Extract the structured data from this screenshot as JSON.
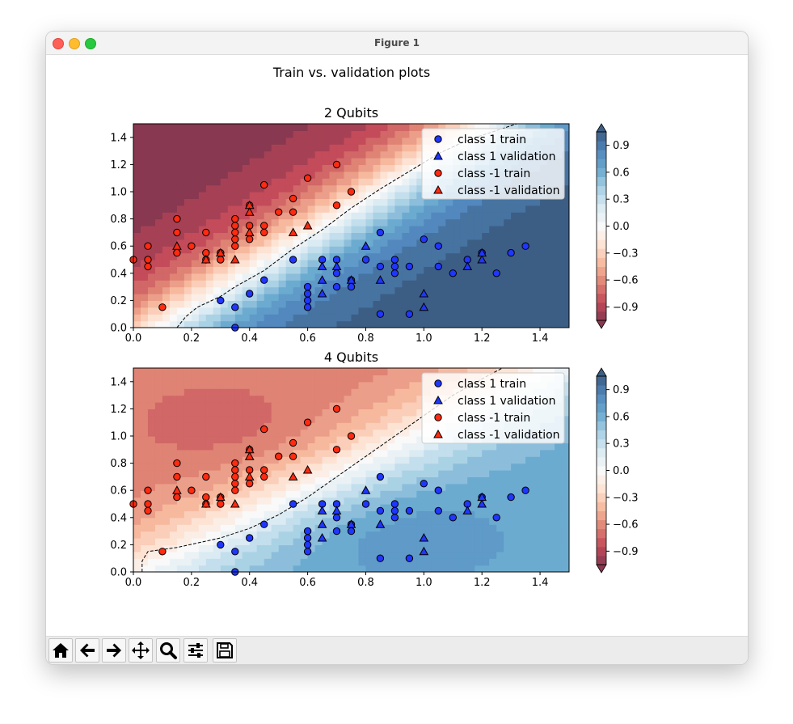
{
  "window": {
    "title": "Figure 1"
  },
  "figure": {
    "suptitle": "Train vs. validation plots"
  },
  "toolbar": {
    "icons": [
      "home-icon",
      "back-arrow-icon",
      "forward-arrow-icon",
      "pan-icon",
      "zoom-icon",
      "configure-subplots-icon",
      "save-icon"
    ]
  },
  "colors": {
    "class1": "#1f36ff",
    "classneg1": "#ff2a10",
    "edge": "#000000"
  },
  "chart_data": [
    {
      "type": "scatter",
      "title": "2 Qubits",
      "xlim": [
        0,
        1.5
      ],
      "ylim": [
        0,
        1.5
      ],
      "xticks": [
        "0.0",
        "0.2",
        "0.4",
        "0.6",
        "0.8",
        "1.0",
        "1.2",
        "1.4"
      ],
      "yticks": [
        "0.0",
        "0.2",
        "0.4",
        "0.6",
        "0.8",
        "1.0",
        "1.2",
        "1.4"
      ],
      "background": "filled decision-function contour, RdBu colormap",
      "colorbar": {
        "ticks": [
          "0.9",
          "0.6",
          "0.3",
          "0.0",
          "−0.3",
          "−0.6",
          "−0.9"
        ],
        "range": [
          -1.05,
          1.05
        ]
      },
      "legend": {
        "placement": "top-right",
        "entries": [
          "class 1 train",
          "class 1 validation",
          "class -1 train",
          "class -1 validation"
        ]
      },
      "decision_boundary": [
        [
          0.15,
          0
        ],
        [
          0.18,
          0.08
        ],
        [
          0.22,
          0.15
        ],
        [
          0.3,
          0.23
        ],
        [
          0.35,
          0.3
        ],
        [
          0.45,
          0.42
        ],
        [
          0.55,
          0.58
        ],
        [
          0.65,
          0.72
        ],
        [
          0.75,
          0.88
        ],
        [
          0.85,
          1.02
        ],
        [
          0.95,
          1.15
        ],
        [
          1.05,
          1.28
        ],
        [
          1.15,
          1.38
        ],
        [
          1.25,
          1.45
        ],
        [
          1.32,
          1.5
        ]
      ]
    },
    {
      "type": "scatter",
      "title": "4 Qubits",
      "xlim": [
        0,
        1.5
      ],
      "ylim": [
        0,
        1.5
      ],
      "xticks": [
        "0.0",
        "0.2",
        "0.4",
        "0.6",
        "0.8",
        "1.0",
        "1.2",
        "1.4"
      ],
      "yticks": [
        "0.0",
        "0.2",
        "0.4",
        "0.6",
        "0.8",
        "1.0",
        "1.2",
        "1.4"
      ],
      "background": "filled decision-function contour, RdBu colormap",
      "colorbar": {
        "ticks": [
          "0.9",
          "0.6",
          "0.3",
          "0.0",
          "−0.3",
          "−0.6",
          "−0.9"
        ],
        "range": [
          -1.05,
          1.05
        ]
      },
      "legend": {
        "placement": "top-right",
        "entries": [
          "class 1 train",
          "class 1 validation",
          "class -1 train",
          "class -1 validation"
        ]
      },
      "decision_boundary": [
        [
          0.03,
          0
        ],
        [
          0.03,
          0.08
        ],
        [
          0.05,
          0.15
        ],
        [
          0.15,
          0.18
        ],
        [
          0.3,
          0.25
        ],
        [
          0.4,
          0.32
        ],
        [
          0.5,
          0.42
        ],
        [
          0.6,
          0.55
        ],
        [
          0.7,
          0.7
        ],
        [
          0.8,
          0.85
        ],
        [
          0.9,
          1.0
        ],
        [
          1.0,
          1.15
        ],
        [
          1.1,
          1.3
        ],
        [
          1.2,
          1.42
        ],
        [
          1.27,
          1.5
        ]
      ]
    }
  ],
  "points": {
    "class1_train": [
      [
        0.3,
        0.2
      ],
      [
        0.35,
        0.15
      ],
      [
        0.35,
        0.0
      ],
      [
        0.4,
        0.25
      ],
      [
        0.45,
        0.35
      ],
      [
        0.55,
        0.5
      ],
      [
        0.6,
        0.3
      ],
      [
        0.6,
        0.25
      ],
      [
        0.6,
        0.2
      ],
      [
        0.6,
        0.15
      ],
      [
        0.65,
        0.5
      ],
      [
        0.7,
        0.5
      ],
      [
        0.7,
        0.4
      ],
      [
        0.7,
        0.3
      ],
      [
        0.75,
        0.35
      ],
      [
        0.75,
        0.3
      ],
      [
        0.8,
        0.5
      ],
      [
        0.85,
        0.7
      ],
      [
        0.85,
        0.45
      ],
      [
        0.85,
        0.1
      ],
      [
        0.9,
        0.5
      ],
      [
        0.9,
        0.45
      ],
      [
        0.9,
        0.4
      ],
      [
        0.95,
        0.45
      ],
      [
        0.95,
        0.1
      ],
      [
        1.0,
        0.65
      ],
      [
        1.05,
        0.6
      ],
      [
        1.05,
        0.45
      ],
      [
        1.1,
        0.4
      ],
      [
        1.15,
        0.5
      ],
      [
        1.2,
        0.55
      ],
      [
        1.25,
        0.4
      ],
      [
        1.3,
        0.55
      ],
      [
        1.35,
        0.6
      ]
    ],
    "class1_val": [
      [
        0.65,
        0.45
      ],
      [
        0.65,
        0.35
      ],
      [
        0.65,
        0.25
      ],
      [
        0.7,
        0.45
      ],
      [
        0.75,
        0.35
      ],
      [
        0.8,
        0.6
      ],
      [
        0.85,
        0.35
      ],
      [
        1.0,
        0.25
      ],
      [
        1.0,
        0.15
      ],
      [
        1.15,
        0.45
      ],
      [
        1.2,
        0.5
      ],
      [
        1.2,
        0.55
      ]
    ],
    "classneg1_train": [
      [
        0.0,
        0.5
      ],
      [
        0.05,
        0.6
      ],
      [
        0.05,
        0.5
      ],
      [
        0.05,
        0.45
      ],
      [
        0.1,
        0.15
      ],
      [
        0.15,
        0.8
      ],
      [
        0.15,
        0.7
      ],
      [
        0.15,
        0.55
      ],
      [
        0.2,
        0.6
      ],
      [
        0.25,
        0.7
      ],
      [
        0.25,
        0.55
      ],
      [
        0.25,
        0.5
      ],
      [
        0.3,
        0.55
      ],
      [
        0.3,
        0.5
      ],
      [
        0.35,
        0.8
      ],
      [
        0.35,
        0.75
      ],
      [
        0.35,
        0.7
      ],
      [
        0.35,
        0.65
      ],
      [
        0.35,
        0.6
      ],
      [
        0.4,
        0.9
      ],
      [
        0.4,
        0.75
      ],
      [
        0.4,
        0.65
      ],
      [
        0.45,
        1.05
      ],
      [
        0.45,
        0.75
      ],
      [
        0.45,
        0.7
      ],
      [
        0.5,
        0.85
      ],
      [
        0.55,
        0.95
      ],
      [
        0.55,
        0.85
      ],
      [
        0.6,
        1.1
      ],
      [
        0.7,
        1.2
      ],
      [
        0.7,
        0.9
      ],
      [
        0.75,
        1.0
      ]
    ],
    "classneg1_val": [
      [
        0.15,
        0.6
      ],
      [
        0.25,
        0.5
      ],
      [
        0.3,
        0.55
      ],
      [
        0.35,
        0.5
      ],
      [
        0.4,
        0.9
      ],
      [
        0.4,
        0.85
      ],
      [
        0.4,
        0.7
      ],
      [
        0.55,
        0.7
      ],
      [
        0.6,
        0.75
      ]
    ]
  }
}
